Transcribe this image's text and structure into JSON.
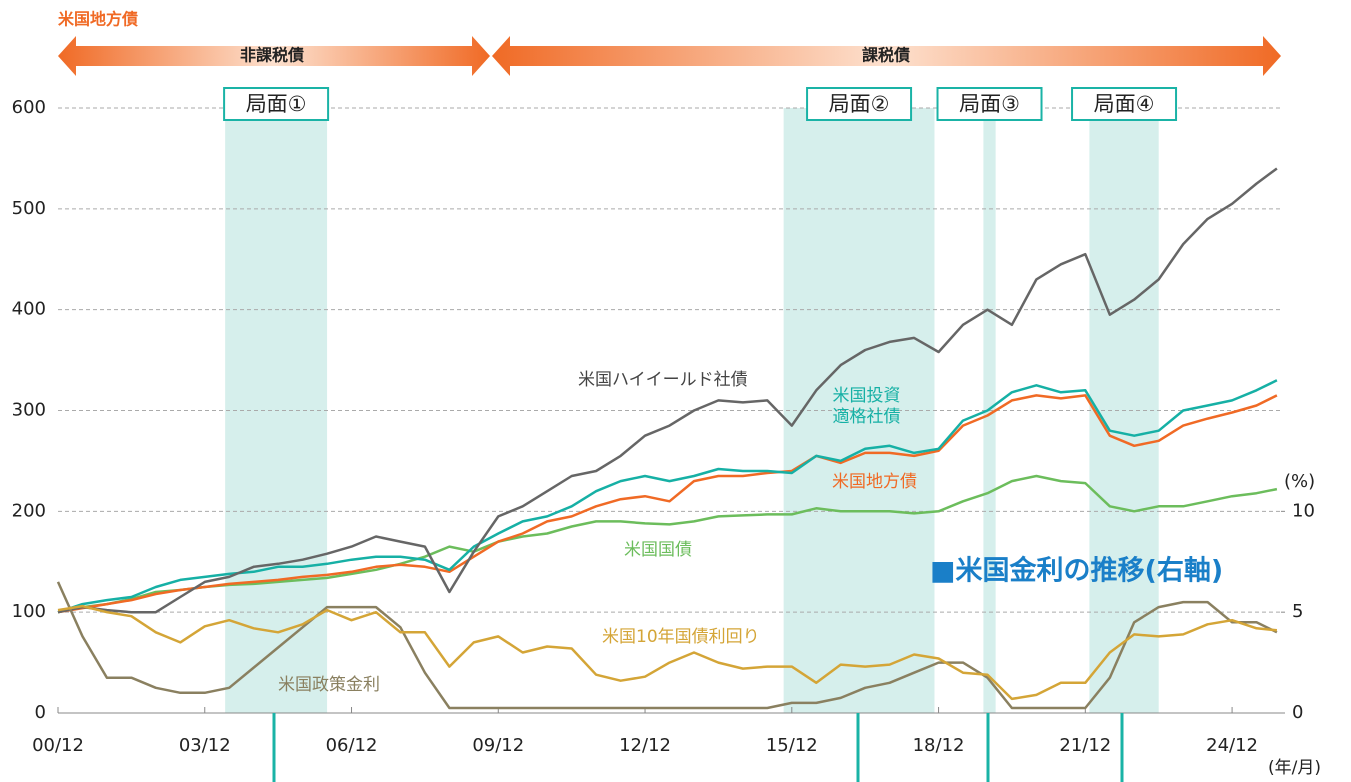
{
  "chart_data": {
    "type": "line",
    "title": "米国地方債",
    "banners": [
      "非課税債",
      "課税債"
    ],
    "annotation": "■米国金利の推移(右軸)",
    "y2_label": "(%)",
    "x_label": "(年/月)",
    "x": [
      "00/12",
      "01/06",
      "01/12",
      "02/06",
      "02/12",
      "03/06",
      "03/12",
      "04/06",
      "04/12",
      "05/06",
      "05/12",
      "06/06",
      "06/12",
      "07/06",
      "07/12",
      "08/06",
      "08/12",
      "09/06",
      "09/12",
      "10/06",
      "10/12",
      "11/06",
      "11/12",
      "12/06",
      "12/12",
      "13/06",
      "13/12",
      "14/06",
      "14/12",
      "15/06",
      "15/12",
      "16/06",
      "16/12",
      "17/06",
      "17/12",
      "18/06",
      "18/12",
      "19/06",
      "19/12",
      "20/06",
      "20/12",
      "21/06",
      "21/12",
      "22/06",
      "22/12",
      "23/06",
      "23/12",
      "24/06",
      "24/12",
      "25/06",
      "25/11"
    ],
    "xlim": [
      "00/12",
      "25/12"
    ],
    "xticks": [
      "00/12",
      "03/12",
      "06/12",
      "09/12",
      "12/12",
      "15/12",
      "18/12",
      "21/12",
      "24/12"
    ],
    "ylim": [
      0,
      600
    ],
    "yticks": [
      0,
      100,
      200,
      300,
      400,
      500,
      600
    ],
    "y2lim": [
      0,
      30
    ],
    "y2ticks": [
      0,
      5,
      10
    ],
    "grid": true,
    "phases": [
      {
        "label": "局面①",
        "start": "04/05",
        "end": "06/06"
      },
      {
        "label": "局面②",
        "start": "15/10",
        "end": "18/11"
      },
      {
        "label": "局面③",
        "start": "19/11",
        "end": "20/02"
      },
      {
        "label": "局面④",
        "start": "22/01",
        "end": "23/06"
      }
    ],
    "series": [
      {
        "name": "米国ハイイールド社債",
        "color": "#666666",
        "values": [
          100,
          105,
          102,
          100,
          100,
          115,
          130,
          135,
          145,
          148,
          152,
          158,
          165,
          175,
          170,
          165,
          120,
          160,
          195,
          205,
          220,
          235,
          240,
          255,
          275,
          285,
          300,
          310,
          308,
          310,
          285,
          320,
          345,
          360,
          368,
          372,
          358,
          385,
          400,
          385,
          430,
          445,
          455,
          395,
          410,
          430,
          465,
          490,
          505,
          525,
          540
        ]
      },
      {
        "name": "米国投資適格社債",
        "color": "#16b0a5",
        "values": [
          100,
          108,
          112,
          115,
          125,
          132,
          135,
          138,
          140,
          145,
          145,
          148,
          152,
          155,
          155,
          152,
          142,
          165,
          178,
          190,
          195,
          205,
          220,
          230,
          235,
          230,
          235,
          242,
          240,
          240,
          238,
          255,
          250,
          262,
          265,
          258,
          262,
          290,
          300,
          318,
          325,
          318,
          320,
          280,
          275,
          280,
          300,
          305,
          310,
          320,
          330
        ]
      },
      {
        "name": "米国地方債",
        "color": "#f06a25",
        "values": [
          100,
          104,
          108,
          112,
          118,
          122,
          125,
          128,
          130,
          132,
          135,
          137,
          140,
          145,
          147,
          145,
          140,
          155,
          170,
          178,
          190,
          195,
          205,
          212,
          215,
          210,
          230,
          235,
          235,
          238,
          240,
          255,
          248,
          258,
          258,
          255,
          260,
          285,
          295,
          310,
          315,
          312,
          315,
          275,
          265,
          270,
          285,
          292,
          298,
          305,
          315
        ]
      },
      {
        "name": "米国国債",
        "color": "#6cbd5c",
        "values": [
          100,
          105,
          108,
          113,
          120,
          122,
          125,
          127,
          128,
          130,
          132,
          134,
          138,
          142,
          148,
          155,
          165,
          160,
          170,
          175,
          178,
          185,
          190,
          190,
          188,
          187,
          190,
          195,
          196,
          197,
          197,
          203,
          200,
          200,
          200,
          198,
          200,
          210,
          218,
          230,
          235,
          230,
          228,
          205,
          200,
          205,
          205,
          210,
          215,
          218,
          222
        ]
      },
      {
        "name": "米国10年国債利回り",
        "color": "#d4a537",
        "axis": "y2",
        "values": [
          5.1,
          5.3,
          5.0,
          4.8,
          4.0,
          3.5,
          4.3,
          4.6,
          4.2,
          4.0,
          4.4,
          5.1,
          4.6,
          5.0,
          4.0,
          4.0,
          2.3,
          3.5,
          3.8,
          3.0,
          3.3,
          3.2,
          1.9,
          1.6,
          1.8,
          2.5,
          3.0,
          2.5,
          2.2,
          2.3,
          2.3,
          1.5,
          2.4,
          2.3,
          2.4,
          2.9,
          2.7,
          2.0,
          1.9,
          0.7,
          0.9,
          1.5,
          1.5,
          3.0,
          3.9,
          3.8,
          3.9,
          4.4,
          4.6,
          4.2,
          4.1
        ]
      },
      {
        "name": "米国政策金利",
        "color": "#8a8060",
        "axis": "y2",
        "values": [
          6.5,
          3.8,
          1.75,
          1.75,
          1.25,
          1.0,
          1.0,
          1.25,
          2.25,
          3.25,
          4.25,
          5.25,
          5.25,
          5.25,
          4.25,
          2.0,
          0.25,
          0.25,
          0.25,
          0.25,
          0.25,
          0.25,
          0.25,
          0.25,
          0.25,
          0.25,
          0.25,
          0.25,
          0.25,
          0.25,
          0.5,
          0.5,
          0.75,
          1.25,
          1.5,
          2.0,
          2.5,
          2.5,
          1.75,
          0.25,
          0.25,
          0.25,
          0.25,
          1.75,
          4.5,
          5.25,
          5.5,
          5.5,
          4.5,
          4.5,
          4.0
        ]
      }
    ]
  }
}
